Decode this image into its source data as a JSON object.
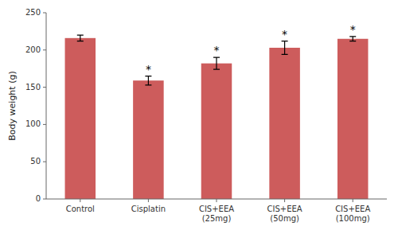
{
  "chart_data": {
    "type": "bar",
    "categories": [
      "Control",
      "Cisplatin",
      "CIS+EEA\n(25mg)",
      "CIS+EEA\n(50mg)",
      "CIS+EEA\n(100mg)"
    ],
    "values": [
      216,
      159,
      182,
      203,
      215
    ],
    "errors": [
      4,
      6,
      8,
      9,
      3
    ],
    "color": "#cd5c5c",
    "ylabel": "Body weight (g)",
    "ylim": [
      0,
      250
    ],
    "yticks": [
      0,
      50,
      100,
      150,
      200,
      250
    ],
    "annotations": [
      null,
      "*",
      "*",
      "*",
      "*"
    ],
    "grid": false
  }
}
